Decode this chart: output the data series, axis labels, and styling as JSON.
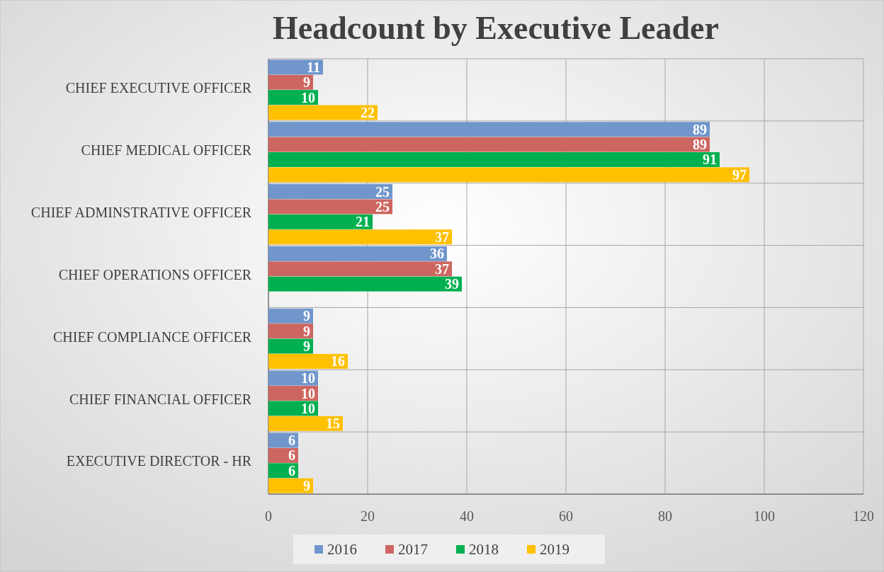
{
  "chart_data": {
    "type": "bar",
    "orientation": "horizontal",
    "title": "Headcount by Executive Leader",
    "categories": [
      "CHIEF EXECUTIVE OFFICER",
      "CHIEF MEDICAL OFFICER",
      "CHIEF ADMINSTRATIVE OFFICER",
      "CHIEF OPERATIONS OFFICER",
      "CHIEF COMPLIANCE OFFICER",
      "CHIEF FINANCIAL OFFICER",
      "EXECUTIVE DIRECTOR - HR"
    ],
    "series": [
      {
        "name": "2016",
        "color": "#7096cc",
        "values": [
          11,
          89,
          25,
          36,
          9,
          10,
          6
        ]
      },
      {
        "name": "2017",
        "color": "#cd6660",
        "values": [
          9,
          89,
          25,
          37,
          9,
          10,
          6
        ]
      },
      {
        "name": "2018",
        "color": "#00b050",
        "values": [
          10,
          91,
          21,
          39,
          9,
          10,
          6
        ]
      },
      {
        "name": "2019",
        "color": "#ffc000",
        "values": [
          22,
          97,
          37,
          null,
          16,
          15,
          9
        ]
      }
    ],
    "xlim": [
      0,
      120
    ],
    "xticks": [
      0,
      20,
      40,
      60,
      80,
      100,
      120
    ],
    "grid": true,
    "legend": "bottom",
    "data_labels": true
  }
}
